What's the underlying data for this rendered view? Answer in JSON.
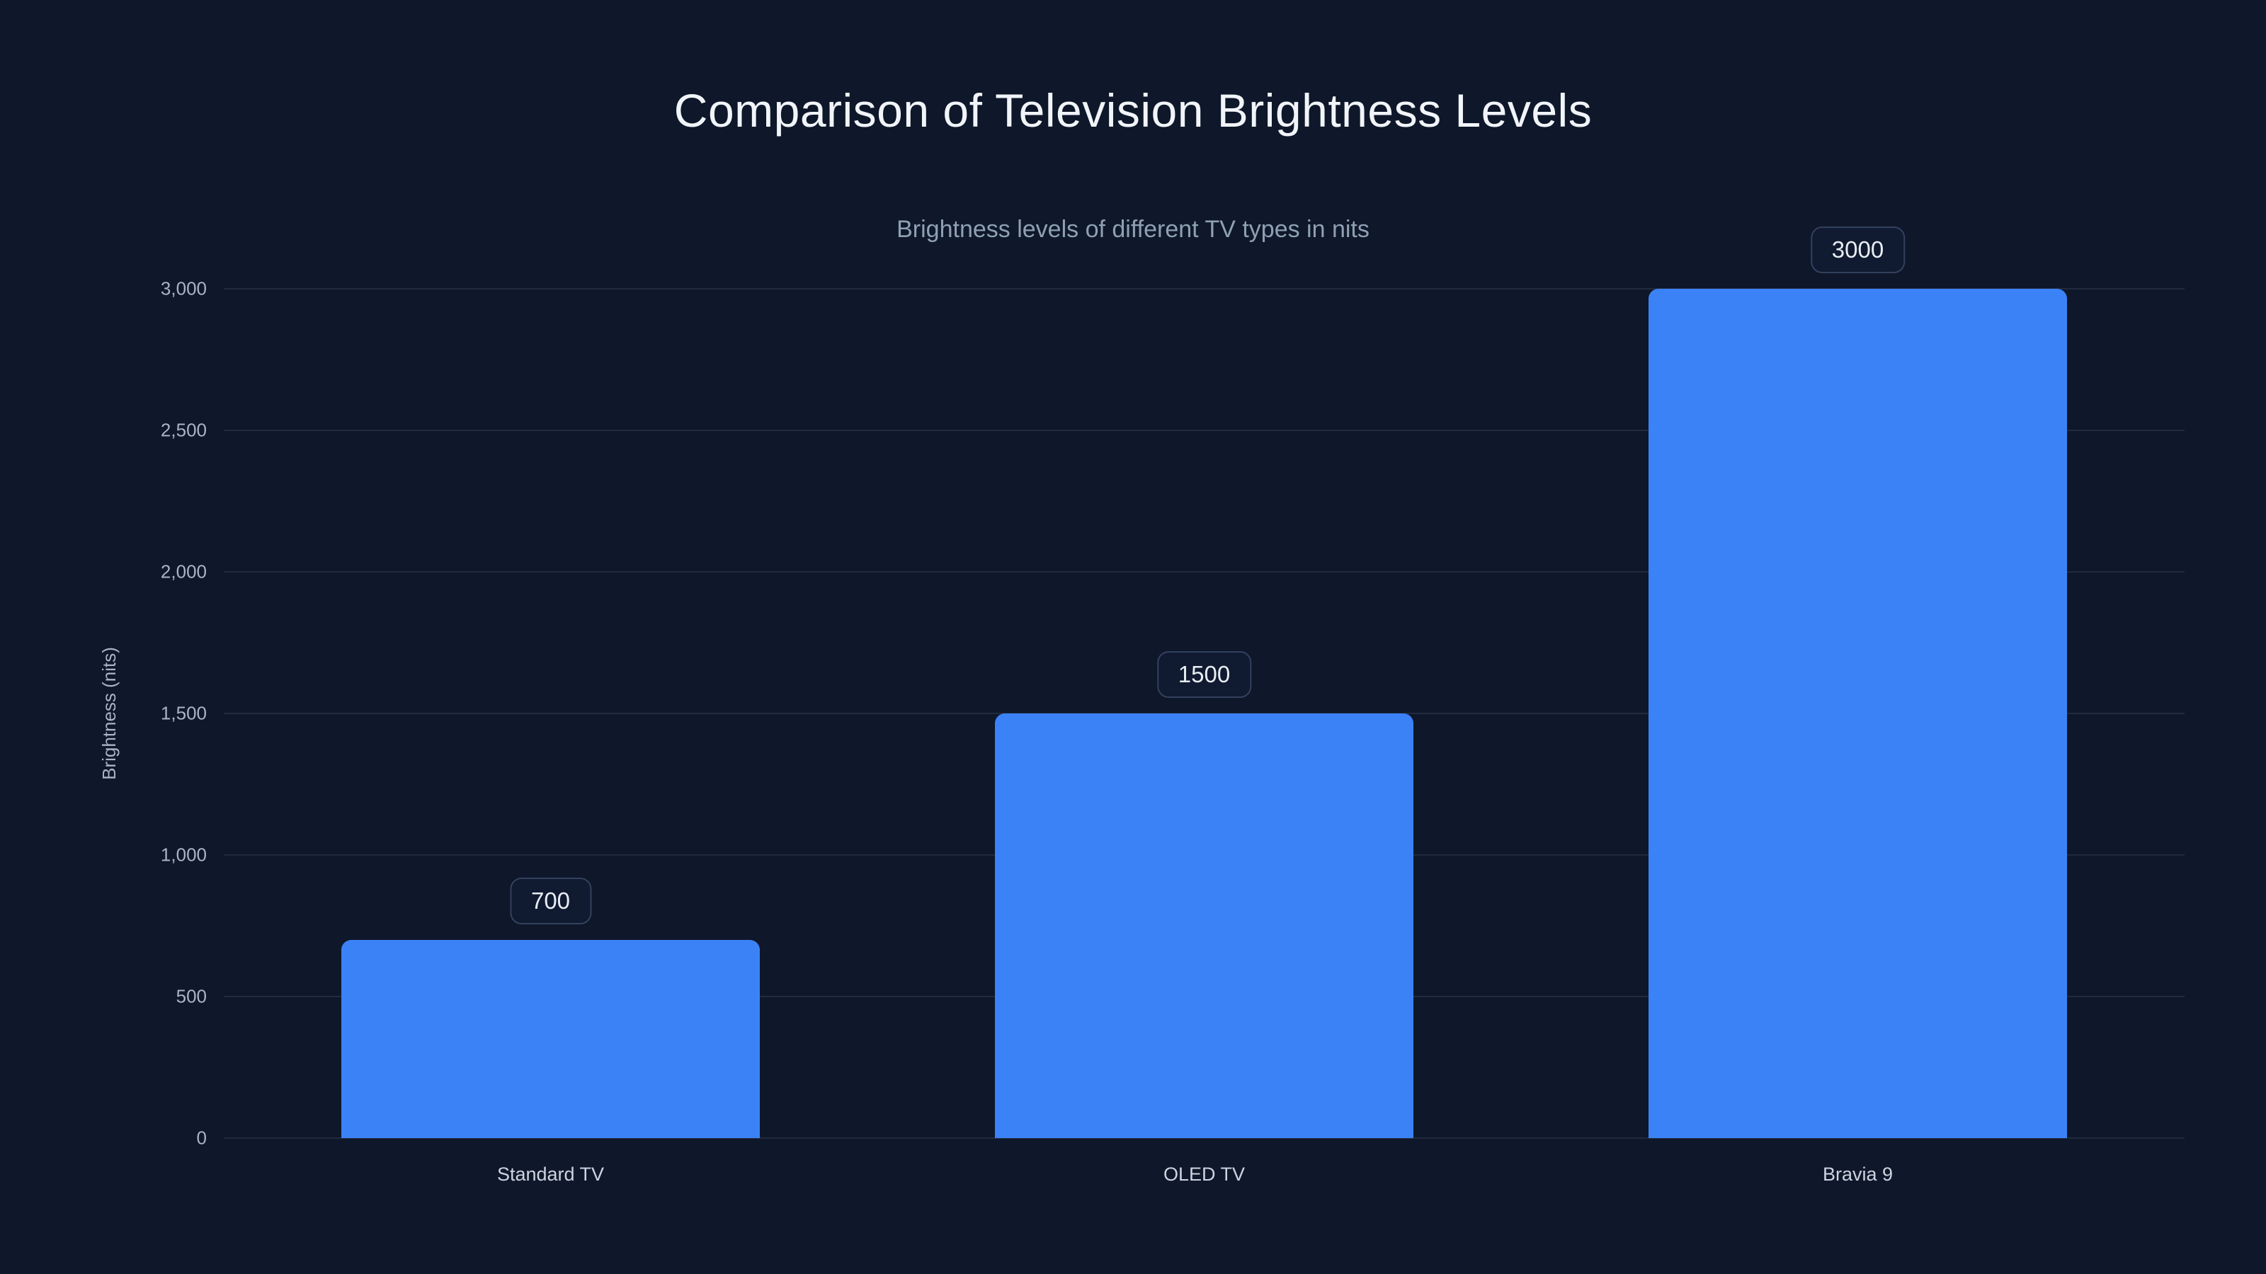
{
  "colors": {
    "background": "#0f172a",
    "bar": "#3b82f6",
    "grid": "rgba(148,163,184,0.14)",
    "title_text": "#f1f5f9",
    "subtitle_text": "#8fa0b5",
    "ytick_text": "#a9b4c4",
    "xtick_text": "#ccd4e0",
    "axis_title_text": "#a9b4c4",
    "badge_border": "#33415e",
    "badge_bg": "#101a30",
    "badge_text": "#e8edf4"
  },
  "chart_data": {
    "type": "bar",
    "title": "Comparison of Television Brightness Levels",
    "subtitle": "Brightness levels of different TV types in nits",
    "categories": [
      "Standard TV",
      "OLED TV",
      "Bravia 9"
    ],
    "values": [
      700,
      1500,
      3000
    ],
    "data_labels": [
      "700",
      "1500",
      "3000"
    ],
    "xlabel": "",
    "ylabel": "Brightness (nits)",
    "ylim": [
      0,
      3000
    ],
    "yticks": [
      0,
      500,
      1000,
      1500,
      2000,
      2500,
      3000
    ],
    "ytick_labels": [
      "0",
      "500",
      "1,000",
      "1,500",
      "2,000",
      "2,500",
      "3,000"
    ],
    "grid": true,
    "legend": false,
    "bar_label_position": "above-bar-in-rounded-badge"
  }
}
